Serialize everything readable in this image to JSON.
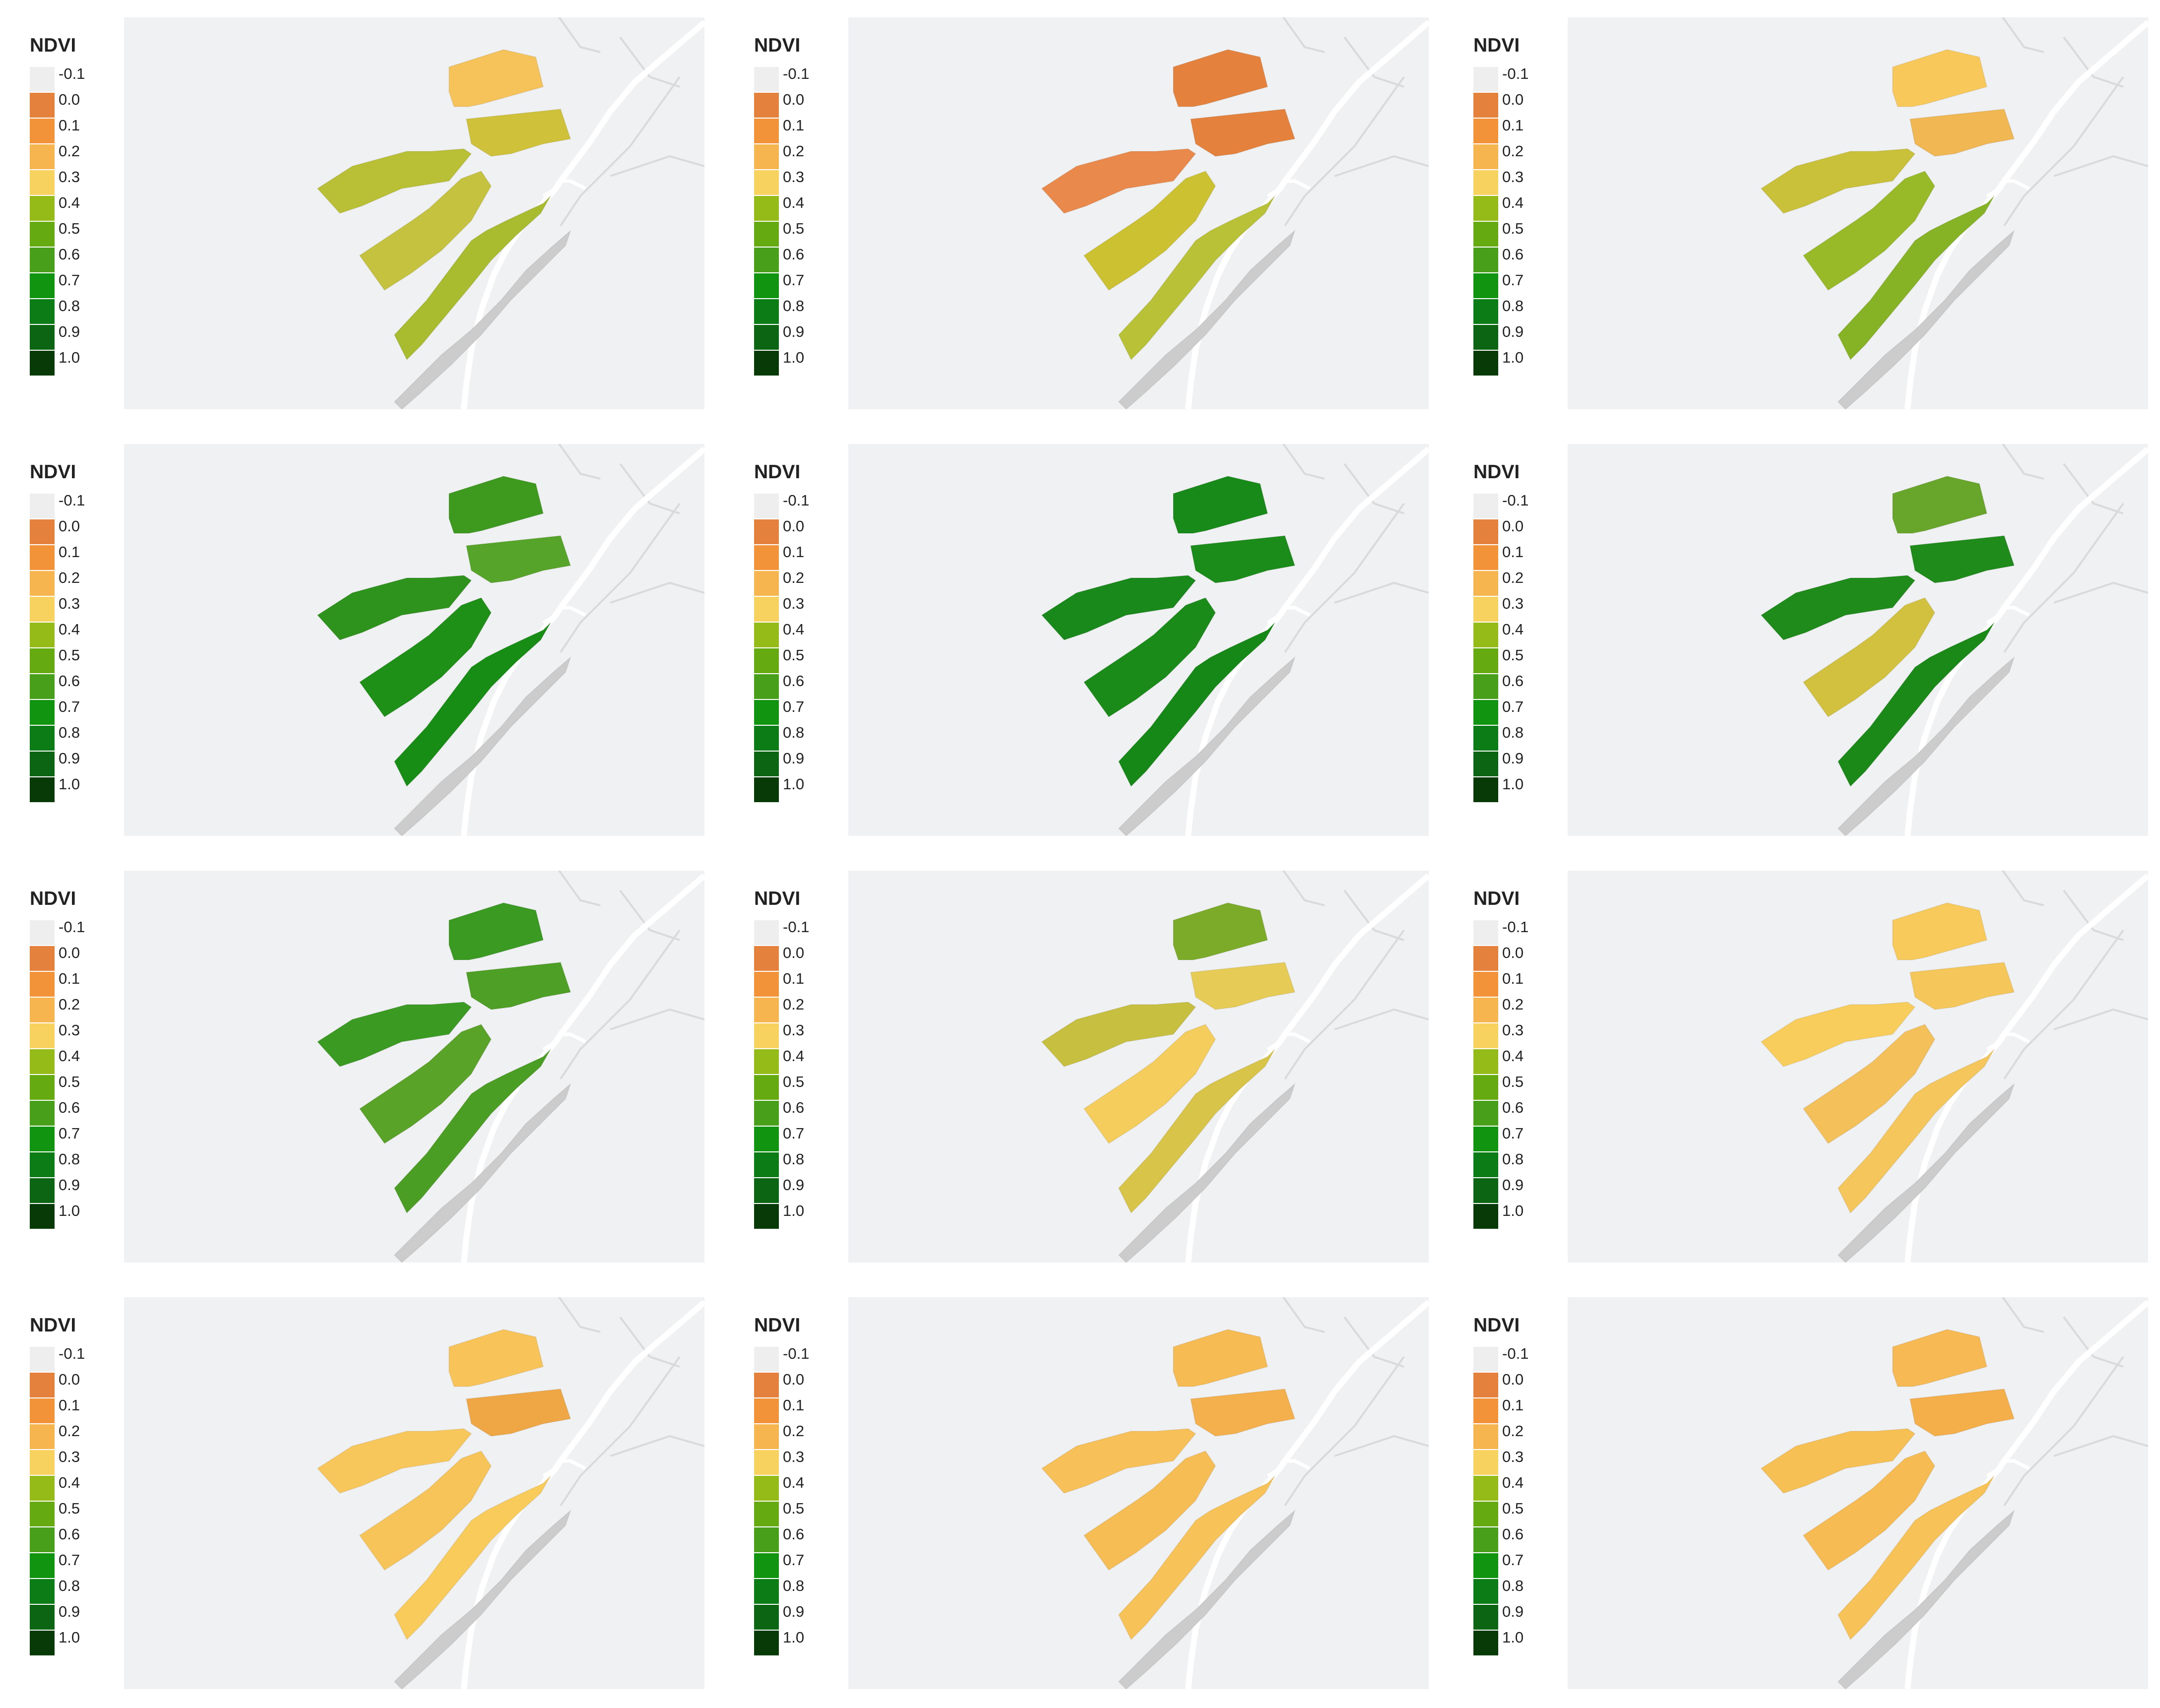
{
  "legend": {
    "title": "NDVI",
    "classes": [
      {
        "label": "-0.1",
        "color": "#eeeeee"
      },
      {
        "label": "0.0",
        "color": "#e4823d"
      },
      {
        "label": "0.1",
        "color": "#f2933a"
      },
      {
        "label": "0.2",
        "color": "#f7b54f"
      },
      {
        "label": "0.3",
        "color": "#f8d25e"
      },
      {
        "label": "0.4",
        "color": "#95bb19"
      },
      {
        "label": "0.5",
        "color": "#66aa12"
      },
      {
        "label": "0.6",
        "color": "#48a01a"
      },
      {
        "label": "0.7",
        "color": "#119410"
      },
      {
        "label": "0.8",
        "color": "#0c7d16"
      },
      {
        "label": "0.9",
        "color": "#0b6513"
      },
      {
        "label": "1.0",
        "color": "#073a06"
      }
    ]
  },
  "colors": {
    "map_background": "#f0f1f2",
    "road": "#ffffff",
    "minor_road": "#d9dadc"
  },
  "panels": [
    {
      "name": "panel-1",
      "field_colors": [
        "#f8c85a",
        "#f6c35a",
        "#cfc13a",
        "#b9c036",
        "#c4c23e",
        "#a9bb2e"
      ]
    },
    {
      "name": "panel-2",
      "field_colors": [
        "#e98546",
        "#e4823d",
        "#e4823d",
        "#e98a4c",
        "#cbc131",
        "#b9c136"
      ]
    },
    {
      "name": "panel-3",
      "field_colors": [
        "#f6c25b",
        "#f8c95a",
        "#f0b752",
        "#c9c13a",
        "#98ba28",
        "#86b226"
      ]
    },
    {
      "name": "panel-4",
      "field_colors": [
        "#5ea52a",
        "#3d9a1f",
        "#56a429",
        "#2e931d",
        "#1e8f17",
        "#188d15"
      ]
    },
    {
      "name": "panel-5",
      "field_colors": [
        "#18891a",
        "#188a1a",
        "#1b8c1a",
        "#18891a",
        "#1a8b19",
        "#168817"
      ]
    },
    {
      "name": "panel-6",
      "field_colors": [
        "#2f961d",
        "#68a52b",
        "#1f8b1b",
        "#1e8b1a",
        "#d1c13e",
        "#1a8918"
      ]
    },
    {
      "name": "panel-7",
      "field_colors": [
        "#2f931c",
        "#3a9a22",
        "#4d9f25",
        "#3b9a22",
        "#59a329",
        "#4b9e24"
      ]
    },
    {
      "name": "panel-8",
      "field_colors": [
        "#a9b935",
        "#7cab2a",
        "#e7cb57",
        "#c7bf3f",
        "#f4cd5c",
        "#d8c449"
      ]
    },
    {
      "name": "panel-9",
      "field_colors": [
        "#f7c15c",
        "#f8c95b",
        "#f5c75a",
        "#f8cd5b",
        "#f4c05a",
        "#f4c65b"
      ]
    },
    {
      "name": "panel-10",
      "field_colors": [
        "#f6b954",
        "#f8c45a",
        "#efa746",
        "#f8c75b",
        "#f6c458",
        "#f8cb5b"
      ]
    },
    {
      "name": "panel-11",
      "field_colors": [
        "#f4ac4b",
        "#f7bb54",
        "#f4b04d",
        "#f8c058",
        "#f6bd55",
        "#f7c257"
      ]
    },
    {
      "name": "panel-12",
      "field_colors": [
        "#f3a847",
        "#f7b953",
        "#f4af4b",
        "#f6c055",
        "#f6bb53",
        "#f7c257"
      ]
    }
  ]
}
